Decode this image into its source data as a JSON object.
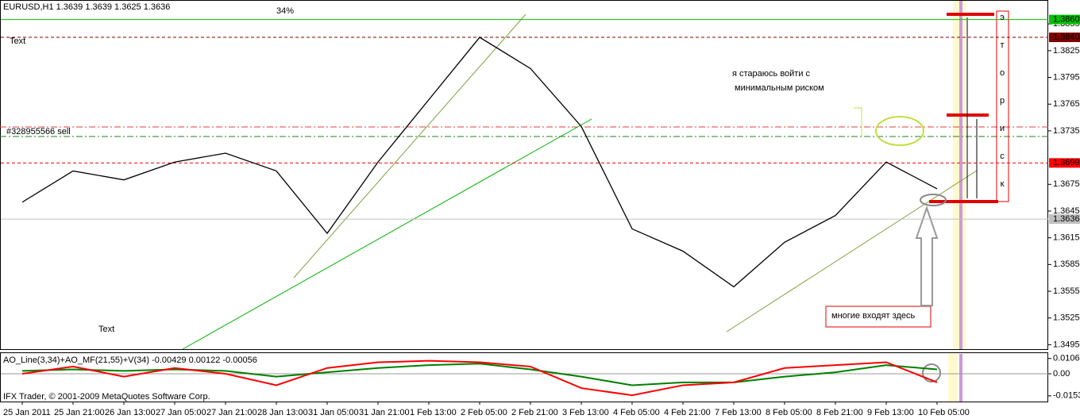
{
  "chart_data": [
    {
      "type": "line",
      "title": "EURUSD,H1  1.3639 1.3639 1.3625 1.3636",
      "categories": [
        "25 Jan 2011",
        "25 Jan 21:00",
        "26 Jan 13:00",
        "27 Jan 05:00",
        "27 Jan 21:00",
        "28 Jan 13:00",
        "31 Jan 05:00",
        "31 Jan 21:00",
        "1 Feb 13:00",
        "2 Feb 05:00",
        "2 Feb 21:00",
        "3 Feb 13:00",
        "4 Feb 05:00",
        "4 Feb 21:00",
        "7 Feb 13:00",
        "8 Feb 05:00",
        "8 Feb 21:00",
        "9 Feb 13:00",
        "10 Feb 05:00"
      ],
      "series": [
        {
          "color": "#000000",
          "values": [
            1.3655,
            1.369,
            1.368,
            1.37,
            1.371,
            1.369,
            1.362,
            1.37,
            1.377,
            1.384,
            1.3805,
            1.374,
            1.3625,
            1.36,
            1.356,
            1.361,
            1.364,
            1.37,
            1.367
          ]
        }
      ],
      "ylim": [
        1.349,
        1.3881
      ],
      "yticks": [
        1.3855,
        1.3825,
        1.3795,
        1.3765,
        1.3735,
        1.3675,
        1.3645,
        1.3615,
        1.3585,
        1.3555,
        1.3525,
        1.3495
      ],
      "levels": [
        {
          "value": 1.386,
          "label": "1.3860",
          "color": "#00c000",
          "text_color": "#ffffff",
          "style": "solid"
        },
        {
          "value": 1.384,
          "label": "1.3840",
          "color": "#800000",
          "text_color": "#ffffff",
          "style": "dashed"
        },
        {
          "value": 1.3699,
          "label": "1.3699",
          "color": "#ff0000",
          "text_color": "#ffffff",
          "style": "dashed"
        },
        {
          "value": 1.3636,
          "label": "1.3636",
          "color": "#c0c0c0",
          "text_color": "#000000",
          "style": "solid"
        }
      ],
      "annotations": {
        "percent": "34%",
        "text_top": "Text",
        "text_bottom": "Text",
        "order": "#328955566 sell",
        "note_line1": "я стараюсь войти с",
        "note_line2": "минимальным риском",
        "entry": "многие входят здесь",
        "side_letters": [
          "э",
          "т",
          "о",
          "р",
          "и",
          "с",
          "к"
        ]
      }
    },
    {
      "type": "line",
      "title": "AO_Line(3,34)+AO_MF(21,55)+V(34) -0.00429 0.00122 -0.00056",
      "series": [
        {
          "color": "#008000",
          "values": [
            0.002,
            0.003,
            0.002,
            0.003,
            0.002,
            -0.002,
            0.001,
            0.004,
            0.006,
            0.007,
            0.003,
            -0.002,
            -0.008,
            -0.006,
            -0.006,
            -0.002,
            0.001,
            0.006,
            0.003
          ]
        },
        {
          "color": "#ff0000",
          "values": [
            0.0,
            0.005,
            -0.002,
            0.004,
            0.0,
            -0.008,
            0.004,
            0.008,
            0.009,
            0.008,
            0.005,
            -0.01,
            -0.015,
            -0.008,
            -0.006,
            0.004,
            0.006,
            0.008,
            -0.006
          ]
        }
      ],
      "ylim": [
        -0.0188,
        0.0138
      ],
      "yticks": [
        0.01062,
        {
          "value": 0,
          "label": "0.00"
        },
        -0.01538
      ]
    }
  ],
  "footer": "IFX Trader, © 2001-2009 MetaQuotes Software Corp."
}
